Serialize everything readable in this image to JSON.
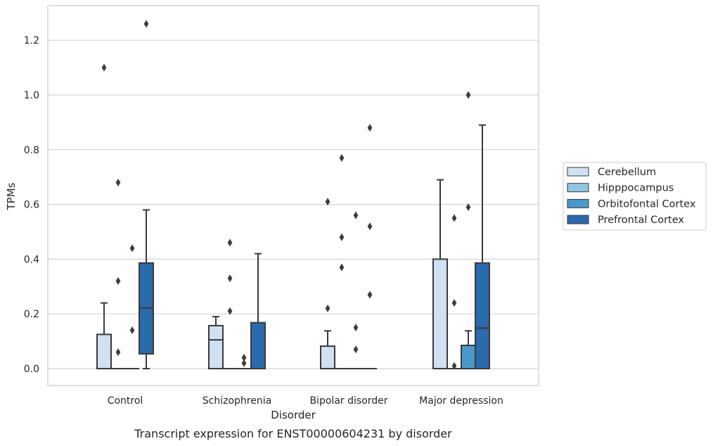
{
  "chart_data": {
    "type": "box",
    "title": "",
    "caption": "Transcript expression for ENST00000604231 by disorder",
    "xlabel": "Disorder",
    "ylabel": "TPMs",
    "ylim": [
      -0.06,
      1.33
    ],
    "yticks": [
      "0.0",
      "0.2",
      "0.4",
      "0.6",
      "0.8",
      "1.0",
      "1.2"
    ],
    "grid": true,
    "legend_position": "right",
    "categories": [
      "Control",
      "Schizophrenia",
      "Bipolar disorder",
      "Major depression"
    ],
    "series": [
      {
        "name": "Cerebellum",
        "color": "#d0e1f2",
        "boxes": [
          {
            "whisker_low": 0.0,
            "q1": 0.0,
            "median": 0.0,
            "q3": 0.125,
            "whisker_high": 0.24,
            "outliers": [
              1.1
            ]
          },
          {
            "whisker_low": 0.0,
            "q1": 0.0,
            "median": 0.105,
            "q3": 0.157,
            "whisker_high": 0.19,
            "outliers": []
          },
          {
            "whisker_low": 0.0,
            "q1": 0.0,
            "median": 0.0,
            "q3": 0.082,
            "whisker_high": 0.138,
            "outliers": [
              0.22,
              0.61
            ]
          },
          {
            "whisker_low": 0.0,
            "q1": 0.0,
            "median": 0.0,
            "q3": 0.4,
            "whisker_high": 0.69,
            "outliers": []
          }
        ]
      },
      {
        "name": "Hipppocampus",
        "color": "#94c4df",
        "boxes": [
          {
            "whisker_low": 0.0,
            "q1": 0.0,
            "median": 0.0,
            "q3": 0.0,
            "whisker_high": 0.0,
            "outliers": [
              0.06,
              0.32,
              0.68
            ]
          },
          {
            "whisker_low": 0.0,
            "q1": 0.0,
            "median": 0.0,
            "q3": 0.0,
            "whisker_high": 0.0,
            "outliers": [
              0.21,
              0.33,
              0.46
            ]
          },
          {
            "whisker_low": 0.0,
            "q1": 0.0,
            "median": 0.0,
            "q3": 0.0,
            "whisker_high": 0.0,
            "outliers": [
              0.37,
              0.48,
              0.77
            ]
          },
          {
            "whisker_low": 0.0,
            "q1": 0.0,
            "median": 0.0,
            "q3": 0.0,
            "whisker_high": 0.0,
            "outliers": [
              0.01,
              0.24,
              0.55
            ]
          }
        ]
      },
      {
        "name": "Orbitofontal Cortex",
        "color": "#4a98c9",
        "boxes": [
          {
            "whisker_low": 0.0,
            "q1": 0.0,
            "median": 0.0,
            "q3": 0.0,
            "whisker_high": 0.0,
            "outliers": [
              0.14,
              0.44
            ]
          },
          {
            "whisker_low": 0.0,
            "q1": 0.0,
            "median": 0.0,
            "q3": 0.0,
            "whisker_high": 0.0,
            "outliers": [
              0.02,
              0.04
            ]
          },
          {
            "whisker_low": 0.0,
            "q1": 0.0,
            "median": 0.0,
            "q3": 0.0,
            "whisker_high": 0.0,
            "outliers": [
              0.07,
              0.15,
              0.56
            ]
          },
          {
            "whisker_low": 0.0,
            "q1": 0.0,
            "median": 0.0,
            "q3": 0.085,
            "whisker_high": 0.138,
            "outliers": [
              0.59,
              1.0
            ]
          }
        ]
      },
      {
        "name": "Prefrontal Cortex",
        "color": "#2a6aad",
        "boxes": [
          {
            "whisker_low": 0.0,
            "q1": 0.054,
            "median": 0.222,
            "q3": 0.386,
            "whisker_high": 0.58,
            "outliers": [
              1.26
            ]
          },
          {
            "whisker_low": 0.0,
            "q1": 0.0,
            "median": 0.0,
            "q3": 0.168,
            "whisker_high": 0.42,
            "outliers": []
          },
          {
            "whisker_low": 0.0,
            "q1": 0.0,
            "median": 0.0,
            "q3": 0.0,
            "whisker_high": 0.0,
            "outliers": [
              0.27,
              0.52,
              0.88
            ]
          },
          {
            "whisker_low": 0.0,
            "q1": 0.0,
            "median": 0.148,
            "q3": 0.386,
            "whisker_high": 0.89,
            "outliers": []
          }
        ]
      }
    ]
  }
}
